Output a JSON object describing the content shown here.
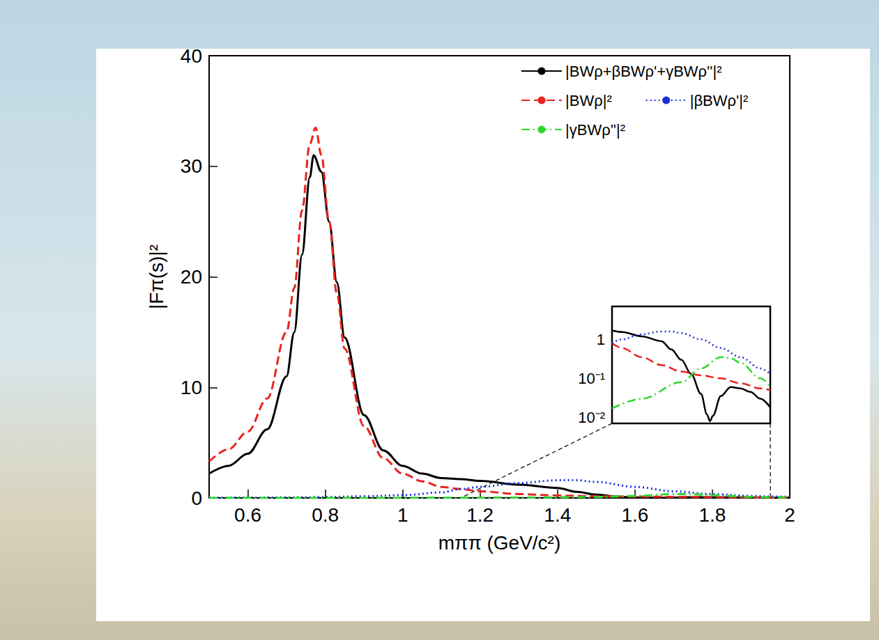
{
  "chart_data": [
    {
      "type": "line",
      "xlabel": "mππ (GeV/c²)",
      "ylabel": "|Fπ(s)|²",
      "xlim": [
        0.5,
        2
      ],
      "xticks": [
        0.6,
        0.8,
        1,
        1.2,
        1.4,
        1.6,
        1.8,
        2
      ],
      "ylim": [
        0,
        40
      ],
      "yticks": [
        0,
        10,
        20,
        30,
        40
      ],
      "legend": "top-right",
      "series": [
        {
          "name": "|BWρ+βBWρ'+γBWρ''|²",
          "color": "#000000",
          "line_style": "solid",
          "x": [
            0.5,
            0.55,
            0.6,
            0.65,
            0.7,
            0.72,
            0.74,
            0.76,
            0.77,
            0.79,
            0.81,
            0.83,
            0.85,
            0.9,
            0.95,
            1.0,
            1.05,
            1.1,
            1.15,
            1.2,
            1.3,
            1.4,
            1.45,
            1.5,
            1.55,
            1.6,
            1.63,
            1.645,
            1.66,
            1.7,
            1.75,
            1.8,
            1.85,
            1.9,
            1.95,
            2.0
          ],
          "values": [
            2.2,
            2.9,
            4.0,
            6.2,
            11,
            15,
            22,
            29,
            31,
            29.5,
            25,
            19.5,
            14.5,
            7.5,
            4.3,
            2.9,
            2.2,
            1.8,
            1.7,
            1.55,
            1.2,
            0.9,
            0.55,
            0.3,
            0.13,
            0.04,
            0.012,
            0.008,
            0.011,
            0.035,
            0.06,
            0.055,
            0.045,
            0.03,
            0.018,
            0.015
          ]
        },
        {
          "name": "|BWρ|²",
          "color": "#e8231e",
          "line_style": "dashed",
          "x": [
            0.5,
            0.55,
            0.6,
            0.65,
            0.7,
            0.72,
            0.74,
            0.76,
            0.775,
            0.79,
            0.81,
            0.83,
            0.85,
            0.9,
            0.95,
            1.0,
            1.05,
            1.1,
            1.15,
            1.2,
            1.3,
            1.4,
            1.5,
            1.6,
            1.7,
            1.8,
            1.9,
            1.95,
            2.0
          ],
          "values": [
            3.3,
            4.4,
            6.0,
            9.0,
            15,
            19,
            26,
            32,
            33.5,
            31,
            25,
            18.5,
            13.5,
            6.5,
            3.6,
            2.2,
            1.5,
            1.0,
            0.8,
            0.6,
            0.35,
            0.22,
            0.15,
            0.12,
            0.1,
            0.075,
            0.055,
            0.05,
            0.045
          ]
        },
        {
          "name": "|βBWρ'|²",
          "color": "#1c2fd6",
          "line_style": "dotted",
          "x": [
            0.5,
            0.6,
            0.7,
            0.8,
            0.9,
            1.0,
            1.1,
            1.15,
            1.2,
            1.3,
            1.4,
            1.45,
            1.5,
            1.6,
            1.7,
            1.8,
            1.9,
            1.95,
            2.0
          ],
          "values": [
            0.02,
            0.03,
            0.05,
            0.08,
            0.15,
            0.25,
            0.5,
            0.8,
            1.0,
            1.35,
            1.6,
            1.6,
            1.45,
            1.0,
            0.6,
            0.35,
            0.18,
            0.13,
            0.1
          ]
        },
        {
          "name": "|γBWρ''|²",
          "color": "#2bd92b",
          "line_style": "dashdot",
          "x": [
            0.5,
            0.6,
            0.7,
            0.8,
            0.9,
            1.0,
            1.1,
            1.15,
            1.3,
            1.5,
            1.6,
            1.7,
            1.75,
            1.8,
            1.9,
            1.95,
            2.0
          ],
          "values": [
            0.002,
            0.003,
            0.003,
            0.004,
            0.006,
            0.008,
            0.012,
            0.017,
            0.03,
            0.08,
            0.18,
            0.35,
            0.33,
            0.25,
            0.1,
            0.06,
            0.04
          ]
        }
      ]
    },
    {
      "type": "line",
      "log": "y",
      "tick_labels": "y",
      "xlim": [
        1.15,
        1.95
      ],
      "ylim": [
        0.007,
        7
      ],
      "yticks": [
        {
          "value": 0.01,
          "label": "10⁻²"
        },
        {
          "value": 0.1,
          "label": "10⁻¹"
        },
        1
      ],
      "series": [
        {
          "name": "|BWρ+βBWρ'+γBWρ''|²",
          "color": "#000000",
          "line_style": "solid",
          "x": [
            1.15,
            1.2,
            1.3,
            1.4,
            1.45,
            1.5,
            1.55,
            1.6,
            1.63,
            1.645,
            1.66,
            1.7,
            1.75,
            1.8,
            1.85,
            1.9,
            1.95
          ],
          "values": [
            1.7,
            1.55,
            1.2,
            0.9,
            0.55,
            0.3,
            0.13,
            0.04,
            0.012,
            0.008,
            0.011,
            0.035,
            0.06,
            0.055,
            0.045,
            0.03,
            0.018
          ]
        },
        {
          "name": "|BWρ|²",
          "color": "#e8231e",
          "line_style": "dashed",
          "x": [
            1.15,
            1.2,
            1.3,
            1.4,
            1.5,
            1.6,
            1.7,
            1.8,
            1.9,
            1.95
          ],
          "values": [
            0.8,
            0.6,
            0.35,
            0.22,
            0.15,
            0.12,
            0.1,
            0.075,
            0.055,
            0.05
          ]
        },
        {
          "name": "|βBWρ'|²",
          "color": "#1c2fd6",
          "line_style": "dotted",
          "x": [
            1.15,
            1.2,
            1.3,
            1.4,
            1.45,
            1.5,
            1.6,
            1.7,
            1.8,
            1.9,
            1.95
          ],
          "values": [
            0.8,
            1.0,
            1.35,
            1.6,
            1.6,
            1.45,
            1.0,
            0.6,
            0.35,
            0.18,
            0.13
          ]
        },
        {
          "name": "|γBWρ''|²",
          "color": "#2bd92b",
          "line_style": "dashdot",
          "x": [
            1.15,
            1.3,
            1.5,
            1.6,
            1.7,
            1.75,
            1.8,
            1.9,
            1.95
          ],
          "values": [
            0.017,
            0.03,
            0.08,
            0.18,
            0.35,
            0.33,
            0.25,
            0.1,
            0.06
          ]
        }
      ]
    }
  ]
}
